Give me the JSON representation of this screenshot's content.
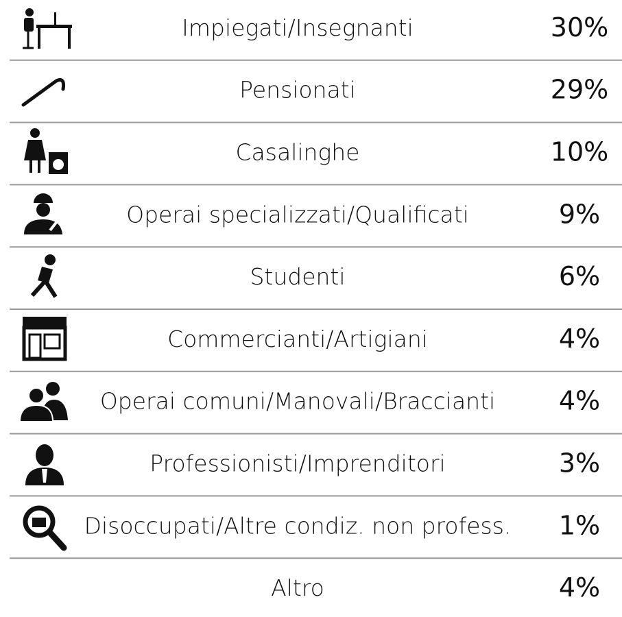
{
  "table": {
    "rows": [
      {
        "label": "Impiegati/Insegnanti",
        "value": "30%"
      },
      {
        "label": "Pensionati",
        "value": "29%"
      },
      {
        "label": "Casalinghe",
        "value": "10%"
      },
      {
        "label": "Operai specializzati/Qualificati",
        "value": "9%"
      },
      {
        "label": "Studenti",
        "value": "6%"
      },
      {
        "label": "Commercianti/Artigiani",
        "value": "4%"
      },
      {
        "label": "Operai comuni/Manovali/Braccianti",
        "value": "4%"
      },
      {
        "label": "Professionisti/Imprenditori",
        "value": "3%"
      },
      {
        "label": "Disoccupati/Altre condiz. non profess.",
        "value": "1%"
      },
      {
        "label": "Altro",
        "value": "4%"
      }
    ]
  }
}
